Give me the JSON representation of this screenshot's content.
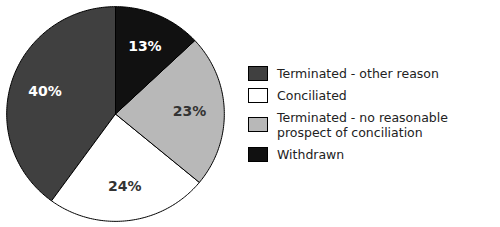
{
  "chart_data": {
    "type": "pie",
    "categories": [
      "Terminated - other reason",
      "Conciliated",
      "Terminated - no reasonable\nprospect of conciliation",
      "Withdrawn"
    ],
    "values": [
      40,
      24,
      23,
      13
    ],
    "value_labels": [
      "40%",
      "24%",
      "23%",
      "13%"
    ],
    "colors": [
      "#404040",
      "#ffffff",
      "#b8b8b8",
      "#111111"
    ],
    "data_labels": true,
    "legend": "right"
  }
}
